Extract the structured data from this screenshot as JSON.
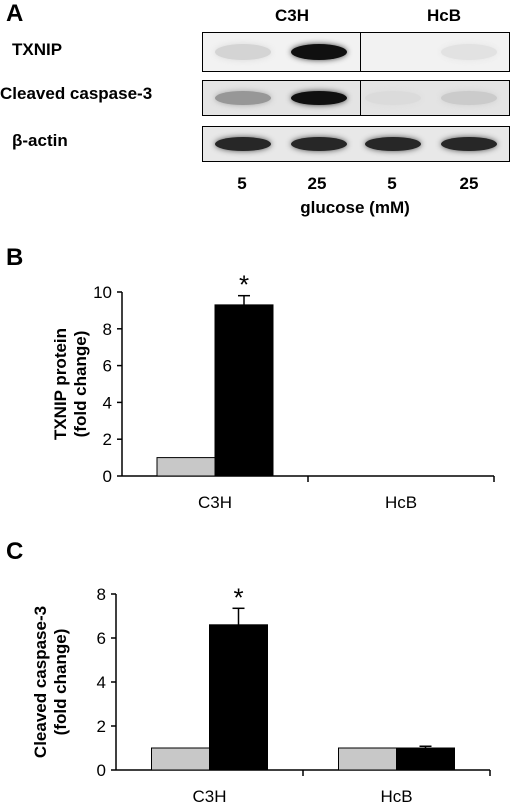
{
  "panel_a": {
    "letter": "A",
    "strains": [
      "C3H",
      "HcB"
    ],
    "blots": [
      {
        "label": "TXNIP",
        "lane_intensity": [
          0.08,
          0.95,
          0.0,
          0.02
        ]
      },
      {
        "label": "Cleaved caspase-3",
        "lane_intensity": [
          0.35,
          0.95,
          0.05,
          0.12
        ]
      },
      {
        "label": "β-actin",
        "lane_intensity": [
          0.85,
          0.85,
          0.85,
          0.85
        ]
      }
    ],
    "lanes": [
      "5",
      "25",
      "5",
      "25"
    ],
    "xlabel": "glucose (mM)"
  },
  "chart_data": [
    {
      "panel": "B",
      "type": "bar",
      "categories": [
        "C3H",
        "HcB"
      ],
      "series": [
        {
          "values": [
            1.0,
            null
          ],
          "color": "#c8c8c8"
        },
        {
          "values": [
            9.3,
            null
          ],
          "color": "#000000"
        }
      ],
      "errors": [
        [
          null,
          null
        ],
        [
          0.5,
          null
        ]
      ],
      "significance": [
        {
          "category": "C3H",
          "series": 1,
          "mark": "*"
        }
      ],
      "ylabel_line1": "TXNIP protein",
      "ylabel_line2": "(fold change)",
      "ylim": [
        0,
        10
      ],
      "yticks": [
        0,
        2,
        4,
        6,
        8,
        10
      ],
      "grid": false
    },
    {
      "panel": "C",
      "type": "bar",
      "categories": [
        "C3H",
        "HcB"
      ],
      "series": [
        {
          "values": [
            1.0,
            1.0
          ],
          "color": "#c8c8c8"
        },
        {
          "values": [
            6.6,
            1.0
          ],
          "color": "#000000"
        }
      ],
      "errors": [
        [
          null,
          null
        ],
        [
          0.75,
          0.08
        ]
      ],
      "significance": [
        {
          "category": "C3H",
          "series": 1,
          "mark": "*"
        }
      ],
      "ylabel_line1": "Cleaved caspase-3",
      "ylabel_line2": "(fold change)",
      "ylim": [
        0,
        8
      ],
      "yticks": [
        0,
        2,
        4,
        6,
        8
      ],
      "grid": false
    }
  ]
}
